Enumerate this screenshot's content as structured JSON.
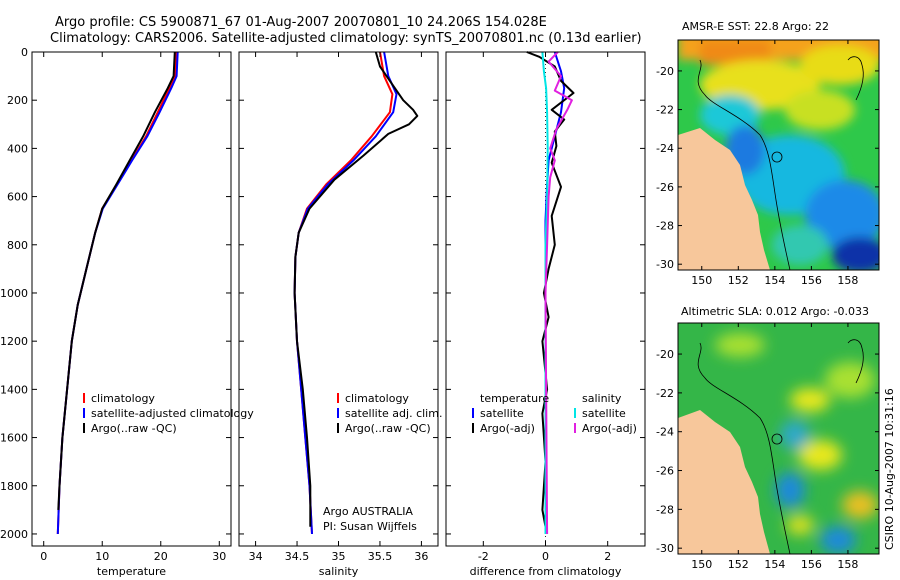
{
  "header": {
    "title_line1": "Argo profile: CS 5900871_67 01-Aug-2007 20070801_10 24.206S 154.028E",
    "title_line2": "Climatology: CARS2006. Satellite-adjusted climatology: synTS_20070801.nc (0.13d earlier)"
  },
  "credit": "CSIRO 10-Aug-2007 10:31:16",
  "colors": {
    "climatology": "#ff0000",
    "satellite": "#0000ff",
    "argo": "#000000",
    "sal_satellite": "#00e5e5",
    "sal_argo": "#e020e0",
    "land": "#f7c79b"
  },
  "chart_data": [
    {
      "id": "temperature",
      "type": "line",
      "xlabel": "temperature",
      "xlim": [
        -2,
        32
      ],
      "ylim": [
        2050,
        0
      ],
      "y_reversed": true,
      "xticks": [
        0,
        10,
        20,
        30
      ],
      "yticks": [
        0,
        200,
        400,
        600,
        800,
        1000,
        1200,
        1400,
        1600,
        1800,
        2000
      ],
      "legend": [
        "climatology",
        "satellite-adjusted climatology",
        "Argo(..raw -QC)"
      ],
      "series": [
        {
          "name": "climatology",
          "color": "#ff0000",
          "points": [
            [
              22.6,
              0
            ],
            [
              22.5,
              100
            ],
            [
              21.5,
              150
            ],
            [
              19.5,
              250
            ],
            [
              17.5,
              350
            ],
            [
              15,
              450
            ],
            [
              12.5,
              550
            ],
            [
              10,
              650
            ],
            [
              8.8,
              750
            ],
            [
              7.3,
              900
            ],
            [
              5.8,
              1050
            ],
            [
              4.8,
              1200
            ],
            [
              4,
              1400
            ],
            [
              3.2,
              1600
            ],
            [
              2.7,
              1800
            ],
            [
              2.4,
              2000
            ]
          ]
        },
        {
          "name": "satellite-adjusted climatology",
          "color": "#0000ff",
          "points": [
            [
              22.9,
              0
            ],
            [
              22.7,
              100
            ],
            [
              21.8,
              150
            ],
            [
              19.8,
              250
            ],
            [
              17.7,
              350
            ],
            [
              15.1,
              450
            ],
            [
              12.6,
              550
            ],
            [
              10.1,
              650
            ],
            [
              8.8,
              750
            ],
            [
              7.3,
              900
            ],
            [
              5.8,
              1050
            ],
            [
              4.8,
              1200
            ],
            [
              4,
              1400
            ],
            [
              3.2,
              1600
            ],
            [
              2.7,
              1800
            ],
            [
              2.4,
              2000
            ]
          ]
        },
        {
          "name": "Argo(..raw -QC)",
          "color": "#000000",
          "points": [
            [
              22.4,
              0
            ],
            [
              22.2,
              100
            ],
            [
              21.2,
              150
            ],
            [
              19,
              250
            ],
            [
              17,
              350
            ],
            [
              14.7,
              450
            ],
            [
              12.4,
              550
            ],
            [
              10,
              650
            ],
            [
              8.8,
              750
            ],
            [
              7.3,
              900
            ],
            [
              5.8,
              1050
            ],
            [
              4.8,
              1200
            ],
            [
              4,
              1400
            ],
            [
              3.2,
              1600
            ],
            [
              2.7,
              1800
            ],
            [
              2.5,
              1900
            ]
          ]
        }
      ]
    },
    {
      "id": "salinity",
      "type": "line",
      "xlabel": "salinity",
      "xlim": [
        33.8,
        36.2
      ],
      "ylim": [
        2050,
        0
      ],
      "y_reversed": true,
      "xticks": [
        34,
        34.5,
        35,
        35.5,
        36
      ],
      "legend": [
        "climatology",
        "satellite adj. clim.",
        "Argo(..raw -QC)"
      ],
      "annotation": [
        "Argo AUSTRALIA",
        "PI: Susan Wijffels"
      ],
      "series": [
        {
          "name": "climatology",
          "color": "#ff0000",
          "points": [
            [
              35.5,
              0
            ],
            [
              35.55,
              100
            ],
            [
              35.65,
              175
            ],
            [
              35.62,
              250
            ],
            [
              35.4,
              350
            ],
            [
              35.15,
              450
            ],
            [
              34.85,
              550
            ],
            [
              34.62,
              650
            ],
            [
              34.52,
              750
            ],
            [
              34.48,
              850
            ],
            [
              34.47,
              1000
            ],
            [
              34.5,
              1200
            ],
            [
              34.55,
              1400
            ],
            [
              34.6,
              1600
            ],
            [
              34.65,
              1800
            ],
            [
              34.68,
              2000
            ]
          ]
        },
        {
          "name": "satellite adj. clim.",
          "color": "#0000ff",
          "points": [
            [
              35.55,
              0
            ],
            [
              35.6,
              100
            ],
            [
              35.7,
              175
            ],
            [
              35.66,
              250
            ],
            [
              35.45,
              350
            ],
            [
              35.18,
              450
            ],
            [
              34.87,
              550
            ],
            [
              34.63,
              650
            ],
            [
              34.52,
              750
            ],
            [
              34.48,
              850
            ],
            [
              34.47,
              1000
            ],
            [
              34.5,
              1200
            ],
            [
              34.55,
              1400
            ],
            [
              34.6,
              1600
            ],
            [
              34.65,
              1800
            ],
            [
              34.68,
              2000
            ]
          ]
        },
        {
          "name": "Argo(..raw -QC)",
          "color": "#000000",
          "points": [
            [
              35.45,
              0
            ],
            [
              35.5,
              60
            ],
            [
              35.62,
              120
            ],
            [
              35.78,
              200
            ],
            [
              35.9,
              240
            ],
            [
              35.95,
              265
            ],
            [
              35.85,
              300
            ],
            [
              35.6,
              340
            ],
            [
              35.3,
              430
            ],
            [
              34.95,
              530
            ],
            [
              34.65,
              650
            ],
            [
              34.52,
              750
            ],
            [
              34.48,
              850
            ],
            [
              34.47,
              1000
            ],
            [
              34.5,
              1200
            ],
            [
              34.57,
              1400
            ],
            [
              34.62,
              1600
            ],
            [
              34.66,
              1800
            ],
            [
              34.66,
              1970
            ]
          ]
        }
      ]
    },
    {
      "id": "difference",
      "type": "line",
      "xlabel": "difference from climatology",
      "xlim": [
        -3.2,
        3.2
      ],
      "ylim": [
        2050,
        0
      ],
      "y_reversed": true,
      "xticks": [
        -2,
        0,
        2
      ],
      "legend_left": [
        "temperature",
        "satellite",
        "Argo(-adj)"
      ],
      "legend_right": [
        "salinity",
        "satellite",
        "Argo(-adj)"
      ],
      "series": [
        {
          "name": "temperature satellite",
          "color": "#0000ff",
          "points": [
            [
              0.3,
              0
            ],
            [
              0.5,
              80
            ],
            [
              0.6,
              150
            ],
            [
              0.5,
              250
            ],
            [
              0.3,
              350
            ],
            [
              0.1,
              450
            ],
            [
              0.05,
              550
            ],
            [
              0,
              700
            ],
            [
              0,
              1000
            ],
            [
              0,
              2000
            ]
          ]
        },
        {
          "name": "temperature Argo(-adj)",
          "color": "#000000",
          "points": [
            [
              -0.6,
              0
            ],
            [
              -0.2,
              20
            ],
            [
              0.3,
              60
            ],
            [
              0.5,
              120
            ],
            [
              0.9,
              170
            ],
            [
              0.2,
              240
            ],
            [
              0.6,
              280
            ],
            [
              0.3,
              330
            ],
            [
              0.35,
              390
            ],
            [
              0.2,
              460
            ],
            [
              0.5,
              560
            ],
            [
              0.2,
              680
            ],
            [
              0.3,
              800
            ],
            [
              0.1,
              900
            ],
            [
              -0.05,
              1000
            ],
            [
              0.1,
              1100
            ],
            [
              -0.1,
              1200
            ],
            [
              0.05,
              1400
            ],
            [
              -0.1,
              1500
            ],
            [
              0,
              1700
            ],
            [
              -0.1,
              1900
            ],
            [
              0,
              1970
            ]
          ]
        },
        {
          "name": "salinity satellite",
          "color": "#00e5e5",
          "points": [
            [
              -0.1,
              0
            ],
            [
              -0.05,
              80
            ],
            [
              0.02,
              150
            ],
            [
              0.05,
              250
            ],
            [
              0.07,
              400
            ],
            [
              0.05,
              600
            ],
            [
              0,
              800
            ],
            [
              0,
              1000
            ],
            [
              0,
              2000
            ]
          ]
        },
        {
          "name": "salinity Argo(-adj)",
          "color": "#e020e0",
          "points": [
            [
              0.4,
              0
            ],
            [
              0.1,
              40
            ],
            [
              0.5,
              100
            ],
            [
              0.3,
              160
            ],
            [
              0.85,
              200
            ],
            [
              0.7,
              240
            ],
            [
              0.35,
              320
            ],
            [
              0.15,
              400
            ],
            [
              0.3,
              450
            ],
            [
              0.15,
              520
            ],
            [
              0.1,
              600
            ],
            [
              0.05,
              800
            ],
            [
              0,
              1000
            ],
            [
              0.05,
              2000
            ]
          ]
        }
      ]
    }
  ],
  "maps": [
    {
      "id": "sst",
      "title": "AMSR-E SST: 22.8 Argo: 22",
      "xticks": [
        150,
        152,
        154,
        156,
        158
      ],
      "yticks": [
        -20,
        -22,
        -24,
        -26,
        -28,
        -30
      ],
      "xlim": [
        148.7,
        159.7
      ],
      "ylim": [
        -30.3,
        -18.4
      ]
    },
    {
      "id": "sla",
      "title": "Altimetric SLA: 0.012 Argo: -0.033",
      "xticks": [
        150,
        152,
        154,
        156,
        158
      ],
      "yticks": [
        -20,
        -22,
        -24,
        -26,
        -28,
        -30
      ],
      "xlim": [
        148.7,
        159.7
      ],
      "ylim": [
        -30.3,
        -18.4
      ]
    }
  ]
}
